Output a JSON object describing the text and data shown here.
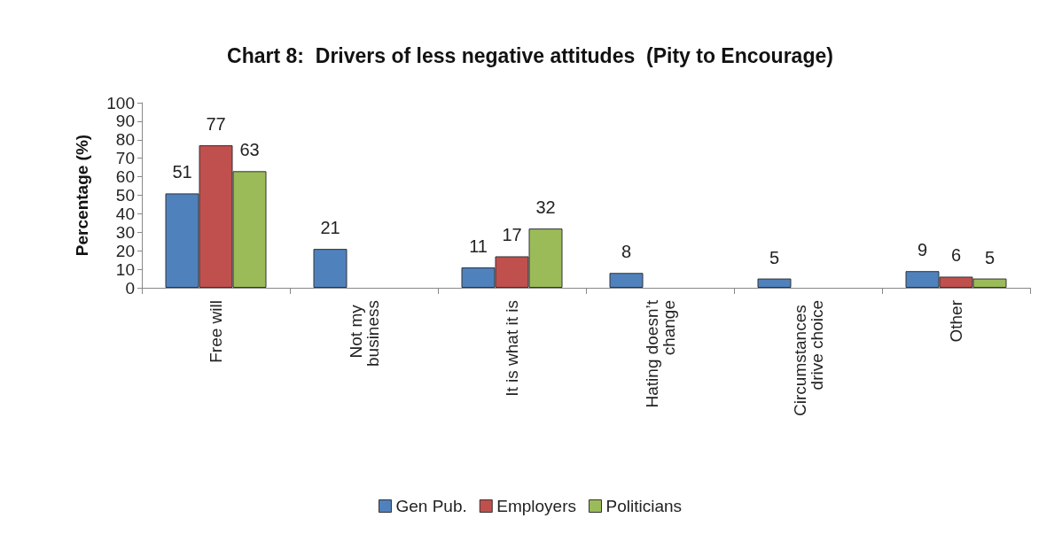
{
  "chart_data": {
    "type": "bar",
    "title": "Chart 8:  Drivers of less negative attitudes  (Pity to Encourage)",
    "ylabel": "Percentage (%)",
    "categories": [
      "Free will",
      "Not my business",
      "It is what it is",
      "Hating doesn’t change",
      "Circumstances drive choice",
      "Other"
    ],
    "series": [
      {
        "name": "Gen Pub.",
        "color": "#4f81bd",
        "values": [
          51,
          21,
          11,
          8,
          5,
          9
        ]
      },
      {
        "name": "Employers",
        "color": "#c0504d",
        "values": [
          77,
          null,
          17,
          null,
          null,
          6
        ]
      },
      {
        "name": "Politicians",
        "color": "#9bbb59",
        "values": [
          63,
          null,
          32,
          null,
          null,
          5
        ]
      }
    ],
    "ylim": [
      0,
      100
    ],
    "yticks": [
      0,
      10,
      20,
      30,
      40,
      50,
      60,
      70,
      80,
      90,
      100
    ],
    "grid": false,
    "legend": "bottom",
    "data_labels": true
  }
}
